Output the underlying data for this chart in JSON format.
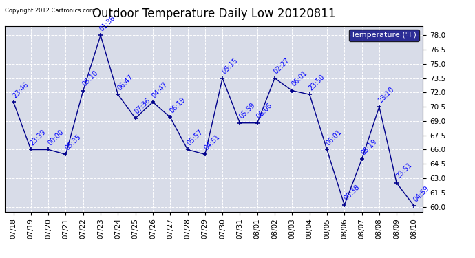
{
  "title": "Outdoor Temperature Daily Low 20120811",
  "copyright_text": "Copyright 2012 Cartronics.com",
  "legend_label": "Temperature (°F)",
  "x_labels": [
    "07/18",
    "07/19",
    "07/20",
    "07/21",
    "07/22",
    "07/23",
    "07/24",
    "07/25",
    "07/26",
    "07/27",
    "07/28",
    "07/29",
    "07/30",
    "07/31",
    "08/01",
    "08/02",
    "08/03",
    "08/04",
    "08/05",
    "08/06",
    "08/07",
    "08/08",
    "08/09",
    "08/10"
  ],
  "y_values": [
    71.0,
    66.0,
    66.0,
    65.5,
    72.2,
    78.0,
    71.8,
    69.3,
    71.0,
    69.4,
    66.0,
    65.5,
    73.5,
    68.8,
    68.8,
    73.5,
    72.2,
    71.8,
    66.0,
    60.2,
    65.0,
    70.5,
    62.5,
    60.1
  ],
  "annotations": [
    "23:46",
    "23:39",
    "00:00",
    "05:35",
    "05:10",
    "01:36",
    "06:47",
    "07:36",
    "04:47",
    "06:19",
    "05:57",
    "04:51",
    "05:15",
    "05:59",
    "06:06",
    "02:27",
    "06:01",
    "23:50",
    "06:01",
    "06:38",
    "05:19",
    "23:10",
    "23:51",
    "04:59"
  ],
  "line_color": "#00008B",
  "marker_color": "#00008B",
  "annotation_color": "#0000FF",
  "plot_bg_color": "#D8DCE8",
  "fig_bg_color": "#FFFFFF",
  "grid_color": "#FFFFFF",
  "ylim": [
    59.5,
    79.0
  ],
  "yticks": [
    60.0,
    61.5,
    63.0,
    64.5,
    66.0,
    67.5,
    69.0,
    70.5,
    72.0,
    73.5,
    75.0,
    76.5,
    78.0
  ],
  "title_fontsize": 12,
  "annotation_fontsize": 7,
  "tick_fontsize": 7.5,
  "legend_bg_color": "#000080",
  "legend_text_color": "#FFFFFF",
  "legend_fontsize": 8
}
